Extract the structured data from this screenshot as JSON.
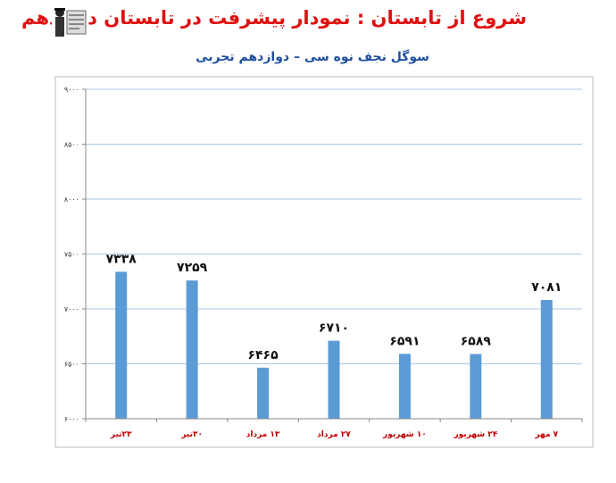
{
  "title": "شروع از تابستان : نمودار پیشرفت در تابستان دوازدهم",
  "subtitle": "سوگل نجف نوه سی – دوازدهم تجربی",
  "colors": {
    "bar": "#5b9bd5",
    "grid": "#a8c8e4",
    "title": "#e01010",
    "subtitle": "#1f4fa0",
    "xlabel": "#c00000"
  },
  "chart_data": {
    "type": "bar",
    "title": "شروع از تابستان : نمودار پیشرفت در تابستان دوازدهم",
    "subtitle": "سوگل نجف نوه سی – دوازدهم تجربی",
    "categories": [
      "۲۳تیر",
      "۳۰تیر",
      "۱۳ مرداد",
      "۲۷ مرداد",
      "۱۰ شهریور",
      "۲۴ شهریور",
      "۷ مهر"
    ],
    "values": [
      7338,
      7259,
      6465,
      6710,
      6591,
      6589,
      7081
    ],
    "value_labels": [
      "۷۳۳۸",
      "۷۲۵۹",
      "۶۴۶۵",
      "۶۷۱۰",
      "۶۵۹۱",
      "۶۵۸۹",
      "۷۰۸۱"
    ],
    "ylim": [
      6000,
      9000
    ],
    "yticks": [
      6000,
      6500,
      7000,
      7500,
      8000,
      8500,
      9000
    ],
    "ytick_labels": [
      "۶۰۰۰",
      "۶۵۰۰",
      "۷۰۰۰",
      "۷۵۰۰",
      "۸۰۰۰",
      "۸۵۰۰",
      "۹۰۰۰"
    ],
    "xlabel": "",
    "ylabel": "",
    "grid": true,
    "legend": "none"
  }
}
